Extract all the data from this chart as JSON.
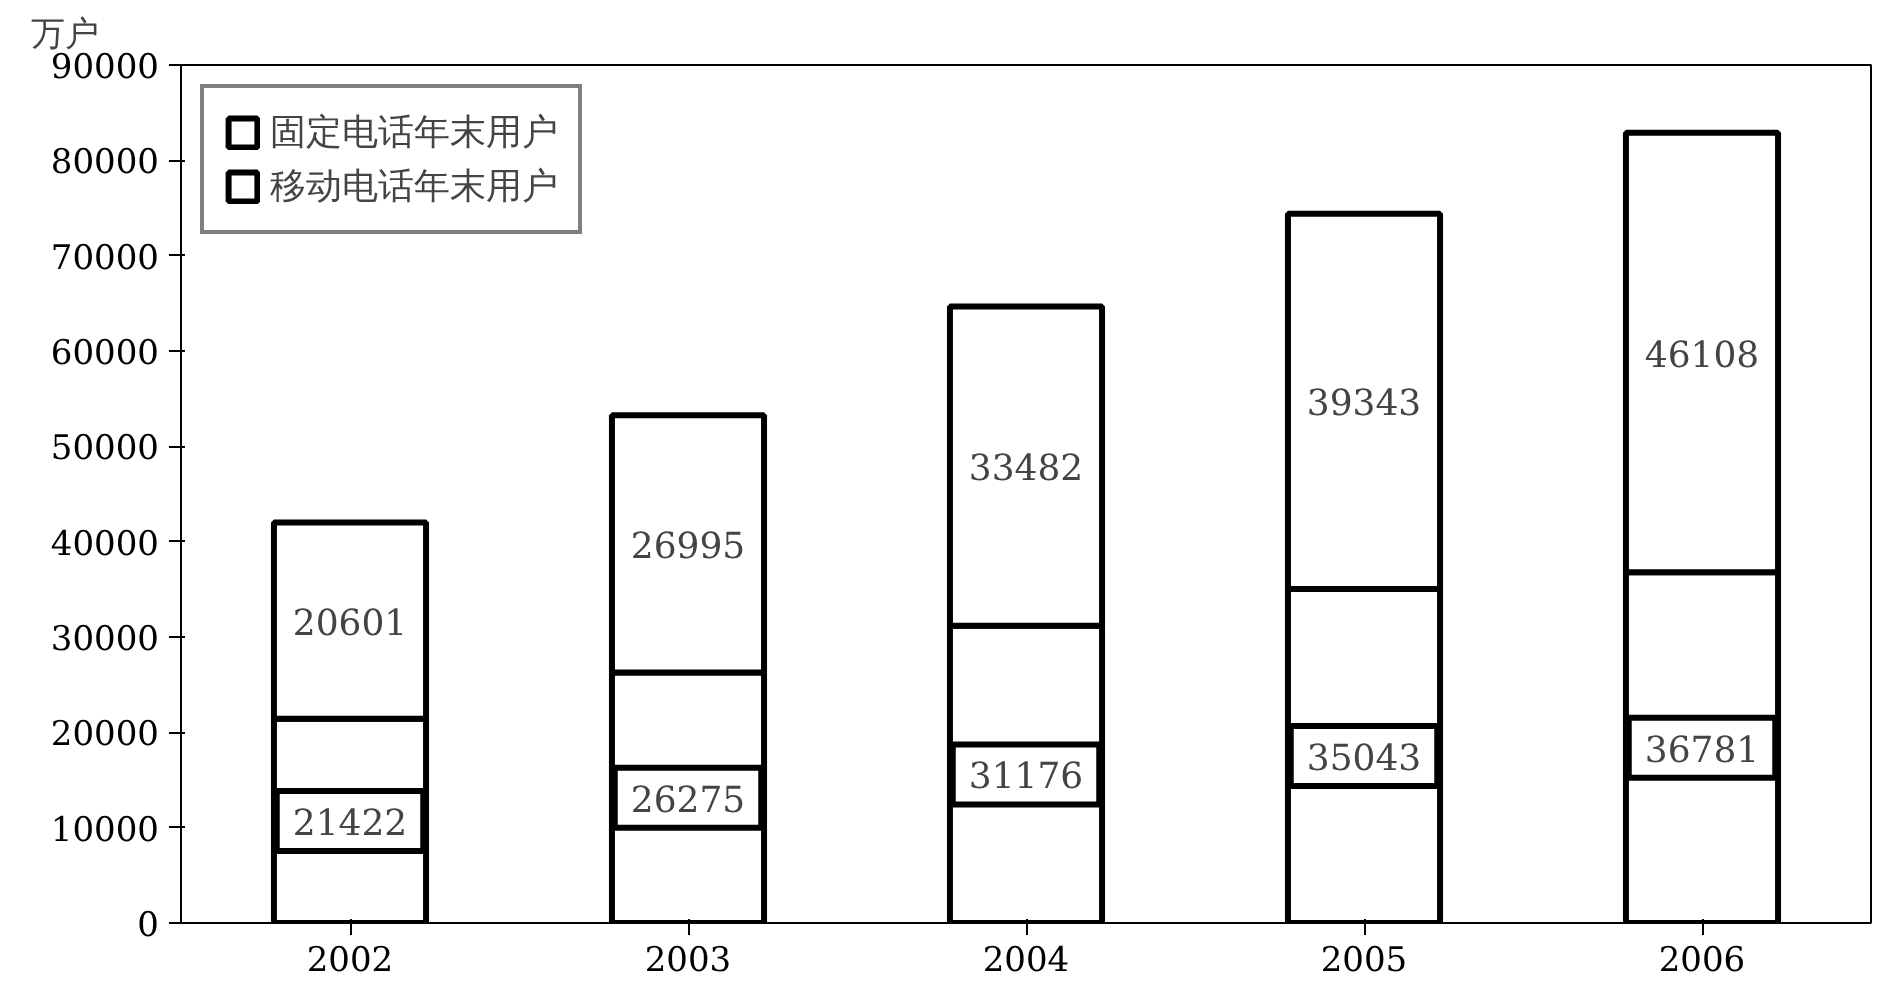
{
  "chart_data": {
    "type": "bar",
    "stacked": true,
    "ylabel": "万户",
    "categories": [
      "2002",
      "2003",
      "2004",
      "2005",
      "2006"
    ],
    "series": [
      {
        "name": "固定电话年末用户",
        "color": "#ffffff",
        "values": [
          21422,
          26275,
          31176,
          35043,
          36781
        ]
      },
      {
        "name": "移动电话年末用户",
        "color": "#ffffff",
        "values": [
          20601,
          26995,
          33482,
          39343,
          46108
        ]
      }
    ],
    "ylim": [
      0,
      90000
    ],
    "yticks": [
      0,
      10000,
      20000,
      30000,
      40000,
      50000,
      60000,
      70000,
      80000,
      90000
    ],
    "grid": false,
    "legend": "top left",
    "data_labels": true
  }
}
